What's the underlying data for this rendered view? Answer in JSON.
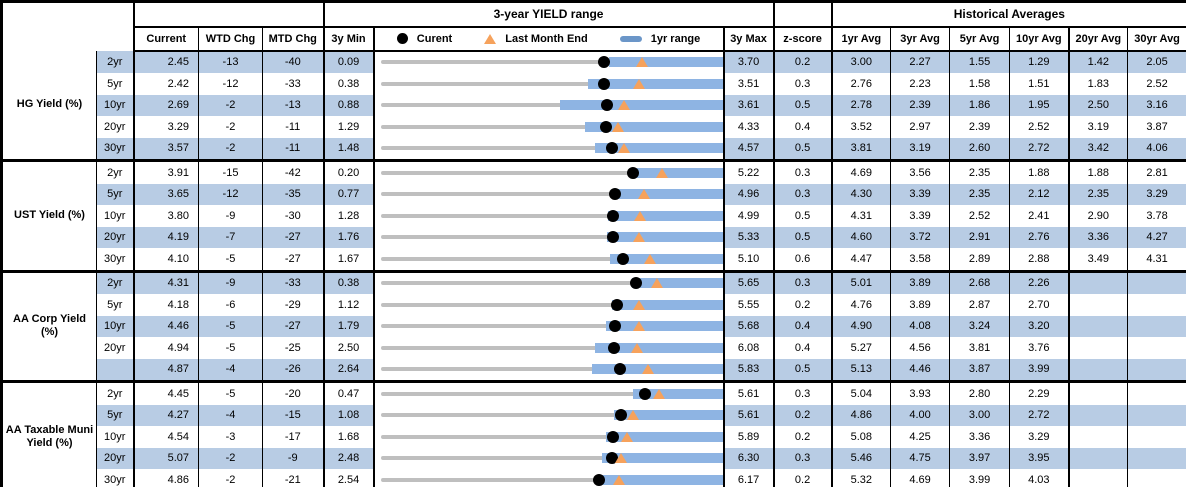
{
  "header": {
    "range_title": "3-year YIELD range",
    "hist_title": "Historical Averages",
    "current": "Current",
    "wtd": "WTD Chg",
    "mtd": "MTD Chg",
    "min3y": "3y Min",
    "max3y": "3y Max",
    "zscore": "z-score",
    "avg_cols": [
      "1yr Avg",
      "3yr Avg",
      "5yr Avg",
      "10yr Avg",
      "20yr Avg",
      "30yr Avg"
    ]
  },
  "legend": {
    "current_label": "Curent",
    "lme_label": "Last Month End",
    "range_label": "1yr range"
  },
  "colors": {
    "row_shade": "#b8cce4",
    "range_bar": "#8eb4e3",
    "track": "#bfbfbf",
    "marker_dot": "#000000",
    "marker_triangle": "#f6a25c"
  },
  "sections": [
    {
      "label": "HG Yield (%)",
      "rows": [
        {
          "tenor": "2yr",
          "current": "2.45",
          "wtd": "-13",
          "mtd": "-40",
          "min": "0.09",
          "max": "3.70",
          "z": "0.2",
          "bar_lo": 2.5,
          "avgs": [
            "3.00",
            "2.27",
            "1.55",
            "1.29",
            "1.42",
            "2.05"
          ]
        },
        {
          "tenor": "5yr",
          "current": "2.42",
          "wtd": "-12",
          "mtd": "-33",
          "min": "0.38",
          "max": "3.51",
          "z": "0.3",
          "bar_lo": 2.28,
          "avgs": [
            "2.76",
            "2.23",
            "1.58",
            "1.51",
            "1.83",
            "2.52"
          ]
        },
        {
          "tenor": "10yr",
          "current": "2.69",
          "wtd": "-2",
          "mtd": "-13",
          "min": "0.88",
          "max": "3.61",
          "z": "0.5",
          "bar_lo": 2.31,
          "avgs": [
            "2.78",
            "2.39",
            "1.86",
            "1.95",
            "2.50",
            "3.16"
          ]
        },
        {
          "tenor": "20yr",
          "current": "3.29",
          "wtd": "-2",
          "mtd": "-11",
          "min": "1.29",
          "max": "4.33",
          "z": "0.4",
          "bar_lo": 3.11,
          "avgs": [
            "3.52",
            "2.97",
            "2.39",
            "2.52",
            "3.19",
            "3.87"
          ]
        },
        {
          "tenor": "30yr",
          "current": "3.57",
          "wtd": "-2",
          "mtd": "-11",
          "min": "1.48",
          "max": "4.57",
          "z": "0.5",
          "bar_lo": 3.42,
          "avgs": [
            "3.81",
            "3.19",
            "2.60",
            "2.72",
            "3.42",
            "4.06"
          ]
        }
      ]
    },
    {
      "label": "UST Yield (%)",
      "rows": [
        {
          "tenor": "2yr",
          "current": "3.91",
          "wtd": "-15",
          "mtd": "-42",
          "min": "0.20",
          "max": "5.22",
          "z": "0.3",
          "bar_lo": 3.87,
          "avgs": [
            "4.69",
            "3.56",
            "2.35",
            "1.88",
            "1.88",
            "2.81"
          ]
        },
        {
          "tenor": "5yr",
          "current": "3.65",
          "wtd": "-12",
          "mtd": "-35",
          "min": "0.77",
          "max": "4.96",
          "z": "0.3",
          "bar_lo": 3.62,
          "avgs": [
            "4.30",
            "3.39",
            "2.35",
            "2.12",
            "2.35",
            "3.29"
          ]
        },
        {
          "tenor": "10yr",
          "current": "3.80",
          "wtd": "-9",
          "mtd": "-30",
          "min": "1.28",
          "max": "4.99",
          "z": "0.5",
          "bar_lo": 3.75,
          "avgs": [
            "4.31",
            "3.39",
            "2.52",
            "2.41",
            "2.90",
            "3.78"
          ]
        },
        {
          "tenor": "20yr",
          "current": "4.19",
          "wtd": "-7",
          "mtd": "-27",
          "min": "1.76",
          "max": "5.33",
          "z": "0.5",
          "bar_lo": 4.12,
          "avgs": [
            "4.60",
            "3.72",
            "2.91",
            "2.76",
            "3.36",
            "4.27"
          ]
        },
        {
          "tenor": "30yr",
          "current": "4.10",
          "wtd": "-5",
          "mtd": "-27",
          "min": "1.67",
          "max": "5.10",
          "z": "0.6",
          "bar_lo": 3.97,
          "avgs": [
            "4.47",
            "3.58",
            "2.89",
            "2.88",
            "3.49",
            "4.31"
          ]
        }
      ]
    },
    {
      "label": "AA Corp Yield (%)",
      "rows": [
        {
          "tenor": "2yr",
          "current": "4.31",
          "wtd": "-9",
          "mtd": "-33",
          "min": "0.38",
          "max": "5.65",
          "z": "0.3",
          "bar_lo": 4.25,
          "avgs": [
            "5.01",
            "3.89",
            "2.68",
            "2.26",
            "",
            ""
          ]
        },
        {
          "tenor": "5yr",
          "current": "4.18",
          "wtd": "-6",
          "mtd": "-29",
          "min": "1.12",
          "max": "5.55",
          "z": "0.2",
          "bar_lo": 4.12,
          "avgs": [
            "4.76",
            "3.89",
            "2.87",
            "2.70",
            "",
            ""
          ]
        },
        {
          "tenor": "10yr",
          "current": "4.46",
          "wtd": "-5",
          "mtd": "-27",
          "min": "1.79",
          "max": "5.68",
          "z": "0.4",
          "bar_lo": 4.35,
          "avgs": [
            "4.90",
            "4.08",
            "3.24",
            "3.20",
            "",
            ""
          ]
        },
        {
          "tenor": "20yr",
          "current": "4.94",
          "wtd": "-5",
          "mtd": "-25",
          "min": "2.50",
          "max": "6.08",
          "z": "0.4",
          "bar_lo": 4.74,
          "avgs": [
            "5.27",
            "4.56",
            "3.81",
            "3.76",
            "",
            ""
          ]
        },
        {
          "tenor": "",
          "current": "4.87",
          "wtd": "-4",
          "mtd": "-26",
          "min": "2.64",
          "max": "5.83",
          "z": "0.5",
          "bar_lo": 4.61,
          "avgs": [
            "5.13",
            "4.46",
            "3.87",
            "3.99",
            "",
            ""
          ]
        }
      ]
    },
    {
      "label": "AA Taxable Muni Yield (%)",
      "rows": [
        {
          "tenor": "2yr",
          "current": "4.45",
          "wtd": "-5",
          "mtd": "-20",
          "min": "0.47",
          "max": "5.61",
          "z": "0.3",
          "bar_lo": 4.27,
          "avgs": [
            "5.04",
            "3.93",
            "2.80",
            "2.29",
            "",
            ""
          ]
        },
        {
          "tenor": "5yr",
          "current": "4.27",
          "wtd": "-4",
          "mtd": "-15",
          "min": "1.08",
          "max": "5.61",
          "z": "0.2",
          "bar_lo": 4.17,
          "avgs": [
            "4.86",
            "4.00",
            "3.00",
            "2.72",
            "",
            ""
          ]
        },
        {
          "tenor": "10yr",
          "current": "4.54",
          "wtd": "-3",
          "mtd": "-17",
          "min": "1.68",
          "max": "5.89",
          "z": "0.2",
          "bar_lo": 4.45,
          "avgs": [
            "5.08",
            "4.25",
            "3.36",
            "3.29",
            "",
            ""
          ]
        },
        {
          "tenor": "20yr",
          "current": "5.07",
          "wtd": "-2",
          "mtd": "-9",
          "min": "2.48",
          "max": "6.30",
          "z": "0.3",
          "bar_lo": 4.95,
          "avgs": [
            "5.46",
            "4.75",
            "3.97",
            "3.95",
            "",
            ""
          ]
        },
        {
          "tenor": "30yr",
          "current": "4.86",
          "wtd": "-2",
          "mtd": "-21",
          "min": "2.54",
          "max": "6.17",
          "z": "0.2",
          "bar_lo": 4.83,
          "avgs": [
            "5.32",
            "4.69",
            "3.99",
            "4.03",
            "",
            ""
          ]
        }
      ]
    }
  ],
  "chart_data": {
    "type": "scatter",
    "title": "3-year YIELD range",
    "legend": [
      "Curent",
      "Last Month End",
      "1yr range"
    ],
    "legend_position": "top",
    "orientation": "horizontal-range-dotplot",
    "categories": [
      "HG 2yr",
      "HG 5yr",
      "HG 10yr",
      "HG 20yr",
      "HG 30yr",
      "UST 2yr",
      "UST 5yr",
      "UST 10yr",
      "UST 20yr",
      "UST 30yr",
      "AA Corp 2yr",
      "AA Corp 5yr",
      "AA Corp 10yr",
      "AA Corp 20yr",
      "AA Corp 30yr",
      "AA Muni 2yr",
      "AA Muni 5yr",
      "AA Muni 10yr",
      "AA Muni 20yr",
      "AA Muni 30yr"
    ],
    "series": [
      {
        "name": "3y Min",
        "values": [
          0.09,
          0.38,
          0.88,
          1.29,
          1.48,
          0.2,
          0.77,
          1.28,
          1.76,
          1.67,
          0.38,
          1.12,
          1.79,
          2.5,
          2.64,
          0.47,
          1.08,
          1.68,
          2.48,
          2.54
        ]
      },
      {
        "name": "3y Max",
        "values": [
          3.7,
          3.51,
          3.61,
          4.33,
          4.57,
          5.22,
          4.96,
          4.99,
          5.33,
          5.1,
          5.65,
          5.55,
          5.68,
          6.08,
          5.83,
          5.61,
          5.61,
          5.89,
          6.3,
          6.17
        ]
      },
      {
        "name": "Current",
        "values": [
          2.45,
          2.42,
          2.69,
          3.29,
          3.57,
          3.91,
          3.65,
          3.8,
          4.19,
          4.1,
          4.31,
          4.18,
          4.46,
          4.94,
          4.87,
          4.45,
          4.27,
          4.54,
          5.07,
          4.86
        ]
      },
      {
        "name": "Last Month End",
        "values": [
          2.85,
          2.75,
          2.82,
          3.4,
          3.68,
          4.33,
          4.0,
          4.1,
          4.46,
          4.37,
          4.64,
          4.47,
          4.73,
          5.19,
          5.13,
          4.65,
          4.42,
          4.71,
          5.16,
          5.07
        ]
      },
      {
        "name": "1yr range low (est)",
        "values": [
          2.5,
          2.28,
          2.31,
          3.11,
          3.42,
          3.87,
          3.62,
          3.75,
          4.12,
          3.97,
          4.25,
          4.12,
          4.35,
          4.74,
          4.61,
          4.27,
          4.17,
          4.45,
          4.95,
          4.83
        ]
      },
      {
        "name": "1yr range high",
        "values": [
          3.7,
          3.51,
          3.61,
          4.33,
          4.57,
          5.22,
          4.96,
          4.99,
          5.33,
          5.1,
          5.65,
          5.55,
          5.68,
          6.08,
          5.83,
          5.61,
          5.61,
          5.89,
          6.3,
          6.17
        ]
      }
    ]
  }
}
